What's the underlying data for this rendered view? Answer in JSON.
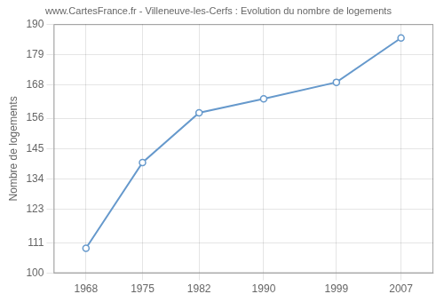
{
  "chart_data": {
    "type": "line",
    "title": "www.CartesFrance.fr - Villeneuve-les-Cerfs : Evolution du nombre de logements",
    "ylabel": "Nombre de logements",
    "x": [
      1968,
      1975,
      1982,
      1990,
      1999,
      2007
    ],
    "values": [
      109,
      140,
      158,
      163,
      169,
      185
    ],
    "color": "#6699cc",
    "marker": "circle",
    "xlim": [
      1964,
      2011
    ],
    "ylim": [
      100,
      190
    ],
    "xticks": [
      1968,
      1975,
      1982,
      1990,
      1999,
      2007
    ],
    "yticks": [
      100,
      111,
      123,
      134,
      145,
      156,
      168,
      179,
      190
    ],
    "grid": true
  }
}
